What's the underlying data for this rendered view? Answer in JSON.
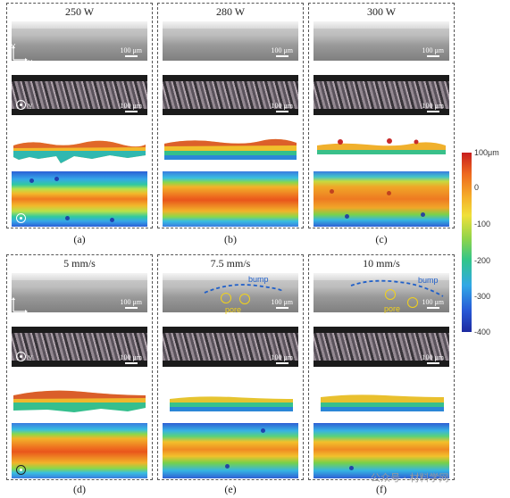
{
  "panels": [
    {
      "title": "250 W",
      "caption": "(a)"
    },
    {
      "title": "280 W",
      "caption": "(b)"
    },
    {
      "title": "300 W",
      "caption": "(c)"
    },
    {
      "title": "5 mm/s",
      "caption": "(d)"
    },
    {
      "title": "7.5 mm/s",
      "caption": "(e)"
    },
    {
      "title": "10 mm/s",
      "caption": "(f)"
    }
  ],
  "scale_bar": "100 μm",
  "axis_labels": {
    "y": "Y",
    "x": "X"
  },
  "annotations": {
    "bump": "bump",
    "pore": "pore"
  },
  "colorbar": {
    "ticks": [
      "100μm",
      "0",
      "-100",
      "-200",
      "-300",
      "-400"
    ],
    "colors": [
      "#c81e1e",
      "#ee6a1f",
      "#f5b02a",
      "#8fd44a",
      "#31a8e6",
      "#1d2aa0"
    ]
  },
  "watermark": "公众号 · 材料学网"
}
